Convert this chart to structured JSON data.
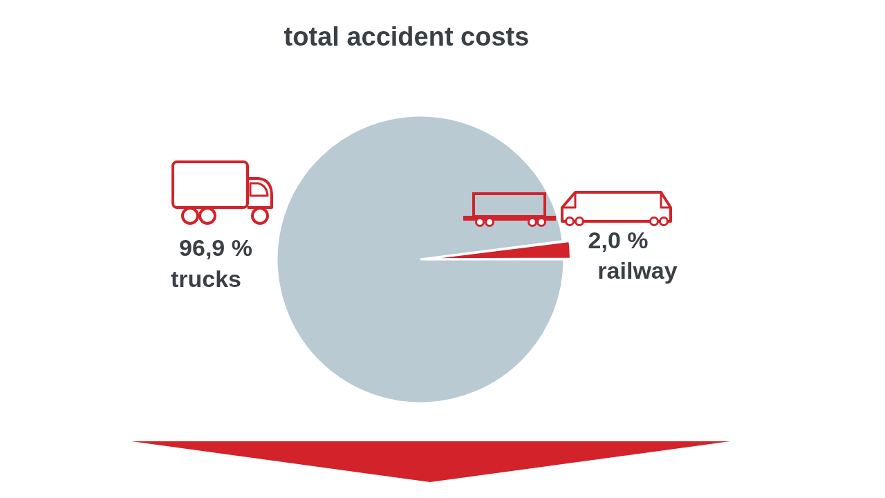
{
  "chart_data": {
    "type": "pie",
    "title": "total accident costs",
    "categories": [
      "trucks",
      "railway"
    ],
    "values": [
      96.9,
      2.0
    ],
    "colors": [
      "#b9cad3",
      "#d2232a"
    ],
    "value_labels": [
      "96,9 %",
      "2,0 %"
    ]
  }
}
